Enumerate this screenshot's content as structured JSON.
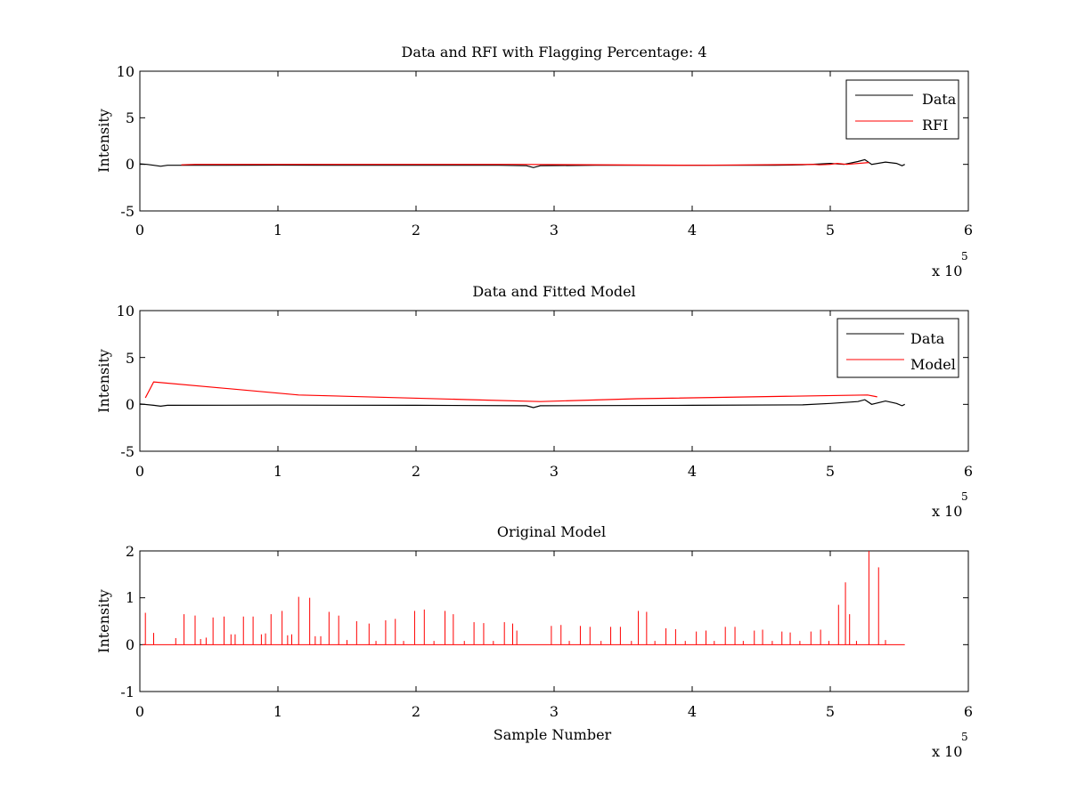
{
  "figure": {
    "background": "#ffffff"
  },
  "chart_data": [
    {
      "type": "line",
      "title": "Data and RFI with Flagging Percentage: 4",
      "xlabel": "",
      "ylabel": "Intensity",
      "xlim": [
        0,
        600000
      ],
      "ylim": [
        -5,
        10
      ],
      "xticks": [
        "0",
        "1",
        "2",
        "3",
        "4",
        "5",
        "6"
      ],
      "yticks": [
        "-5",
        "0",
        "5",
        "10"
      ],
      "x_multiplier": {
        "base": "x 10",
        "exponent": "5"
      },
      "legend": {
        "position": "top-right",
        "entries": [
          "Data",
          "RFI"
        ]
      },
      "series": [
        {
          "name": "Data",
          "color": "#000000",
          "points": [
            [
              0,
              0.05
            ],
            [
              5000,
              0.0
            ],
            [
              10000,
              -0.1
            ],
            [
              15000,
              -0.2
            ],
            [
              20000,
              -0.1
            ],
            [
              60000,
              -0.1
            ],
            [
              100000,
              -0.08
            ],
            [
              140000,
              -0.1
            ],
            [
              180000,
              -0.1
            ],
            [
              220000,
              -0.1
            ],
            [
              260000,
              -0.1
            ],
            [
              280000,
              -0.15
            ],
            [
              285000,
              -0.35
            ],
            [
              290000,
              -0.15
            ],
            [
              330000,
              -0.1
            ],
            [
              380000,
              -0.1
            ],
            [
              420000,
              -0.1
            ],
            [
              460000,
              -0.1
            ],
            [
              480000,
              -0.05
            ],
            [
              500000,
              0.1
            ],
            [
              510000,
              0.0
            ],
            [
              520000,
              0.3
            ],
            [
              525000,
              0.5
            ],
            [
              530000,
              0.0
            ],
            [
              540000,
              0.25
            ],
            [
              548000,
              0.1
            ],
            [
              552000,
              -0.15
            ],
            [
              554000,
              0.0
            ]
          ]
        },
        {
          "name": "RFI",
          "color": "#ff0000",
          "points": [
            [
              30000,
              -0.05
            ],
            [
              40000,
              0.0
            ],
            [
              145000,
              0.0
            ],
            [
              270000,
              0.0
            ],
            [
              405000,
              -0.1
            ],
            [
              488000,
              0.0
            ],
            [
              492000,
              -0.05
            ],
            [
              500000,
              0.0
            ],
            [
              505000,
              0.1
            ],
            [
              512000,
              0.0
            ],
            [
              528000,
              0.2
            ]
          ]
        }
      ]
    },
    {
      "type": "line",
      "title": "Data and Fitted Model",
      "xlabel": "",
      "ylabel": "Intensity",
      "xlim": [
        0,
        600000
      ],
      "ylim": [
        -5,
        10
      ],
      "xticks": [
        "0",
        "1",
        "2",
        "3",
        "4",
        "5",
        "6"
      ],
      "yticks": [
        "-5",
        "0",
        "5",
        "10"
      ],
      "x_multiplier": {
        "base": "x 10",
        "exponent": "5"
      },
      "legend": {
        "position": "top-right",
        "entries": [
          "Data",
          "Model"
        ]
      },
      "series": [
        {
          "name": "Data",
          "color": "#000000",
          "points": [
            [
              0,
              0.05
            ],
            [
              10000,
              -0.1
            ],
            [
              15000,
              -0.2
            ],
            [
              20000,
              -0.1
            ],
            [
              100000,
              -0.08
            ],
            [
              200000,
              -0.1
            ],
            [
              280000,
              -0.15
            ],
            [
              285000,
              -0.35
            ],
            [
              290000,
              -0.15
            ],
            [
              400000,
              -0.1
            ],
            [
              480000,
              -0.05
            ],
            [
              500000,
              0.1
            ],
            [
              520000,
              0.3
            ],
            [
              525000,
              0.5
            ],
            [
              530000,
              0.0
            ],
            [
              540000,
              0.35
            ],
            [
              548000,
              0.1
            ],
            [
              552000,
              -0.15
            ],
            [
              554000,
              0.0
            ]
          ]
        },
        {
          "name": "Model",
          "color": "#ff0000",
          "points": [
            [
              4000,
              0.7
            ],
            [
              10000,
              2.4
            ],
            [
              115000,
              1.0
            ],
            [
              240000,
              0.5
            ],
            [
              290000,
              0.3
            ],
            [
              360000,
              0.6
            ],
            [
              527000,
              1.0
            ],
            [
              534000,
              0.8
            ]
          ]
        }
      ]
    },
    {
      "type": "line",
      "title": "Original Model",
      "xlabel": "Sample Number",
      "ylabel": "Intensity",
      "xlim": [
        0,
        600000
      ],
      "ylim": [
        -1,
        2
      ],
      "xticks": [
        "0",
        "1",
        "2",
        "3",
        "4",
        "5",
        "6"
      ],
      "yticks": [
        "-1",
        "0",
        "1",
        "2"
      ],
      "x_multiplier": {
        "base": "x 10",
        "exponent": "5"
      },
      "baseline_extent": [
        2000,
        554000
      ],
      "series": [
        {
          "name": "",
          "color": "#ff0000",
          "spikes": [
            [
              4000,
              0.68
            ],
            [
              10000,
              0.25
            ],
            [
              26000,
              0.14
            ],
            [
              32000,
              0.65
            ],
            [
              40000,
              0.62
            ],
            [
              44000,
              0.12
            ],
            [
              48000,
              0.15
            ],
            [
              53000,
              0.58
            ],
            [
              61000,
              0.6
            ],
            [
              66000,
              0.22
            ],
            [
              69000,
              0.22
            ],
            [
              75000,
              0.6
            ],
            [
              82000,
              0.6
            ],
            [
              88000,
              0.22
            ],
            [
              91000,
              0.24
            ],
            [
              95000,
              0.65
            ],
            [
              103000,
              0.72
            ],
            [
              107000,
              0.2
            ],
            [
              110000,
              0.22
            ],
            [
              115000,
              1.02
            ],
            [
              123000,
              1.0
            ],
            [
              127000,
              0.18
            ],
            [
              131000,
              0.18
            ],
            [
              137000,
              0.7
            ],
            [
              144000,
              0.62
            ],
            [
              150000,
              0.1
            ],
            [
              157000,
              0.5
            ],
            [
              166000,
              0.45
            ],
            [
              171000,
              0.08
            ],
            [
              178000,
              0.52
            ],
            [
              185000,
              0.55
            ],
            [
              191000,
              0.08
            ],
            [
              199000,
              0.72
            ],
            [
              206000,
              0.75
            ],
            [
              213000,
              0.08
            ],
            [
              221000,
              0.72
            ],
            [
              227000,
              0.65
            ],
            [
              235000,
              0.08
            ],
            [
              242000,
              0.48
            ],
            [
              249000,
              0.46
            ],
            [
              256000,
              0.08
            ],
            [
              264000,
              0.48
            ],
            [
              270000,
              0.45
            ],
            [
              273000,
              0.3
            ],
            [
              298000,
              0.4
            ],
            [
              305000,
              0.42
            ],
            [
              311000,
              0.08
            ],
            [
              319000,
              0.4
            ],
            [
              326000,
              0.38
            ],
            [
              334000,
              0.08
            ],
            [
              341000,
              0.38
            ],
            [
              348000,
              0.38
            ],
            [
              356000,
              0.08
            ],
            [
              361000,
              0.72
            ],
            [
              367000,
              0.7
            ],
            [
              373000,
              0.08
            ],
            [
              381000,
              0.35
            ],
            [
              388000,
              0.33
            ],
            [
              395000,
              0.08
            ],
            [
              403000,
              0.28
            ],
            [
              410000,
              0.3
            ],
            [
              416000,
              0.08
            ],
            [
              424000,
              0.38
            ],
            [
              431000,
              0.38
            ],
            [
              437000,
              0.08
            ],
            [
              445000,
              0.3
            ],
            [
              451000,
              0.32
            ],
            [
              458000,
              0.08
            ],
            [
              465000,
              0.28
            ],
            [
              471000,
              0.26
            ],
            [
              478000,
              0.08
            ],
            [
              486000,
              0.28
            ],
            [
              493000,
              0.32
            ],
            [
              499000,
              0.08
            ],
            [
              506000,
              0.85
            ],
            [
              511000,
              1.33
            ],
            [
              514000,
              0.65
            ],
            [
              519000,
              0.08
            ],
            [
              528000,
              2.0
            ],
            [
              535000,
              1.65
            ],
            [
              540000,
              0.1
            ]
          ]
        }
      ]
    }
  ]
}
